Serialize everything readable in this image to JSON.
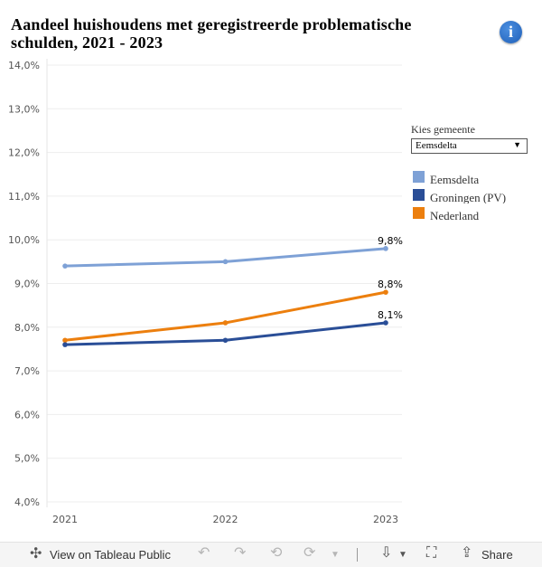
{
  "title": "Aandeel huishoudens met geregistreerde problematische schulden, 2021 - 2023",
  "info_icon": "info-icon",
  "filter": {
    "label": "Kies gemeente",
    "selected": "Eemsdelta"
  },
  "chart_data": {
    "type": "line",
    "title": "Aandeel huishoudens met geregistreerde problematische schulden, 2021 - 2023",
    "xlabel": "",
    "ylabel": "",
    "x": [
      "2021",
      "2022",
      "2023"
    ],
    "y_ticks": [
      "4,0%",
      "5,0%",
      "6,0%",
      "7,0%",
      "8,0%",
      "9,0%",
      "10,0%",
      "11,0%",
      "12,0%",
      "13,0%",
      "14,0%"
    ],
    "y_tick_values": [
      4,
      5,
      6,
      7,
      8,
      9,
      10,
      11,
      12,
      13,
      14
    ],
    "ylim": [
      4,
      14
    ],
    "grid": true,
    "legend_position": "right",
    "series": [
      {
        "name": "Eemsdelta",
        "color": "#7ea1d6",
        "values": [
          9.4,
          9.5,
          9.8
        ],
        "end_label": "9,8%"
      },
      {
        "name": "Groningen (PV)",
        "color": "#2a4e97",
        "values": [
          7.6,
          7.7,
          8.1
        ],
        "end_label": "8,1%"
      },
      {
        "name": "Nederland",
        "color": "#ec7f0e",
        "values": [
          7.7,
          8.1,
          8.8
        ],
        "end_label": "8,8%"
      }
    ]
  },
  "toolbar": {
    "view_label": "View on Tableau Public",
    "share_label": "Share",
    "icons": [
      "tableau-logo-icon",
      "undo-icon",
      "redo-icon",
      "revert-icon",
      "refresh-icon",
      "download-icon",
      "fullscreen-icon",
      "share-icon"
    ]
  }
}
